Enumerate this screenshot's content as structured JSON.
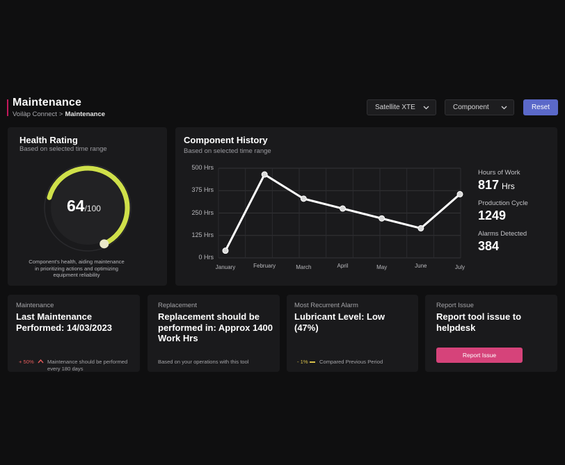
{
  "header": {
    "title": "Maintenance",
    "breadcrumb_root": "Voilàp Connect",
    "breadcrumb_sep": ">",
    "breadcrumb_current": "Maintenance",
    "machine_select": "Satellite XTE",
    "component_select": "Component",
    "reset_label": "Reset"
  },
  "health": {
    "title": "Health Rating",
    "subtitle": "Based on selected time range",
    "value": "64",
    "max": "/100",
    "fraction": 0.64,
    "description": "Component's health, aiding maintenance in prioritizing actions and optimizing equipment reliability",
    "arc_color": "#cfe04a"
  },
  "history": {
    "title": "Component History",
    "subtitle": "Based on selected time range",
    "stats": [
      {
        "label": "Hours of Work",
        "value": "817",
        "unit": "Hrs"
      },
      {
        "label": "Production Cycle",
        "value": "1249",
        "unit": ""
      },
      {
        "label": "Alarms Detected",
        "value": "384",
        "unit": ""
      }
    ]
  },
  "chart_data": {
    "type": "line",
    "categories": [
      "January",
      "February",
      "March",
      "April",
      "May",
      "June",
      "July"
    ],
    "values": [
      40,
      465,
      330,
      275,
      220,
      165,
      355
    ],
    "yticks": [
      0,
      125,
      250,
      375,
      500
    ],
    "ytick_labels": [
      "0 Hrs",
      "125 Hrs",
      "250 Hrs",
      "375 Hrs",
      "500 Hrs"
    ],
    "ylim": [
      0,
      500
    ],
    "grid": true,
    "line_color": "#ffffff"
  },
  "cards": [
    {
      "label": "Maintenance",
      "title": "Last Maintenance Performed: 14/03/2023",
      "delta": "+ 50%",
      "foot": "Maintenance should be performed every 180 days"
    },
    {
      "label": "Replacement",
      "title": "Replacement should be performed in: Approx 1400 Work Hrs",
      "foot": "Based on your operations with this tool"
    },
    {
      "label": "Most Recurrent Alarm",
      "title": "Lubricant Level: Low (47%)",
      "delta": "- 1%",
      "foot": "Compared Previous Period"
    },
    {
      "label": "Report Issue",
      "title": "Report tool issue to helpdesk",
      "button": "Report Issue"
    }
  ],
  "colors": {
    "accent": "#5b69c9",
    "report": "#d6437a",
    "title_bar": "#c2185b"
  }
}
